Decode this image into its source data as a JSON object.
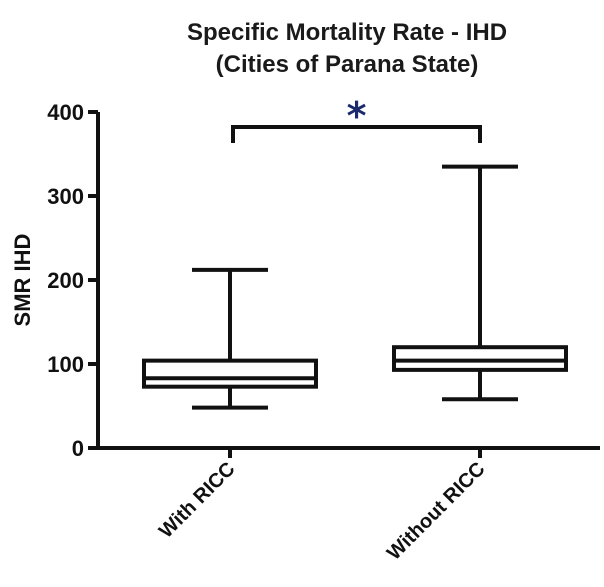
{
  "chart_data": {
    "type": "boxplot",
    "title_lines": [
      "Specific Mortality Rate - IHD",
      "(Cities of Parana State)"
    ],
    "ylabel": "SMR IHD",
    "xlabel": "",
    "ylim": [
      0,
      400
    ],
    "yticks": [
      0,
      100,
      200,
      300,
      400
    ],
    "categories": [
      "With RICC",
      "Without RICC"
    ],
    "boxes": [
      {
        "label": "With RICC",
        "min": 48,
        "q1": 73,
        "median": 83,
        "q3": 104,
        "max": 212
      },
      {
        "label": "Without RICC",
        "min": 58,
        "q1": 93,
        "median": 104,
        "q3": 120,
        "max": 335
      }
    ],
    "significance": {
      "between": [
        "With RICC",
        "Without RICC"
      ],
      "label": "*",
      "color": "#1a2a6c"
    },
    "colors": {
      "box_fill": "#ffffff",
      "stroke": "#111111"
    }
  }
}
